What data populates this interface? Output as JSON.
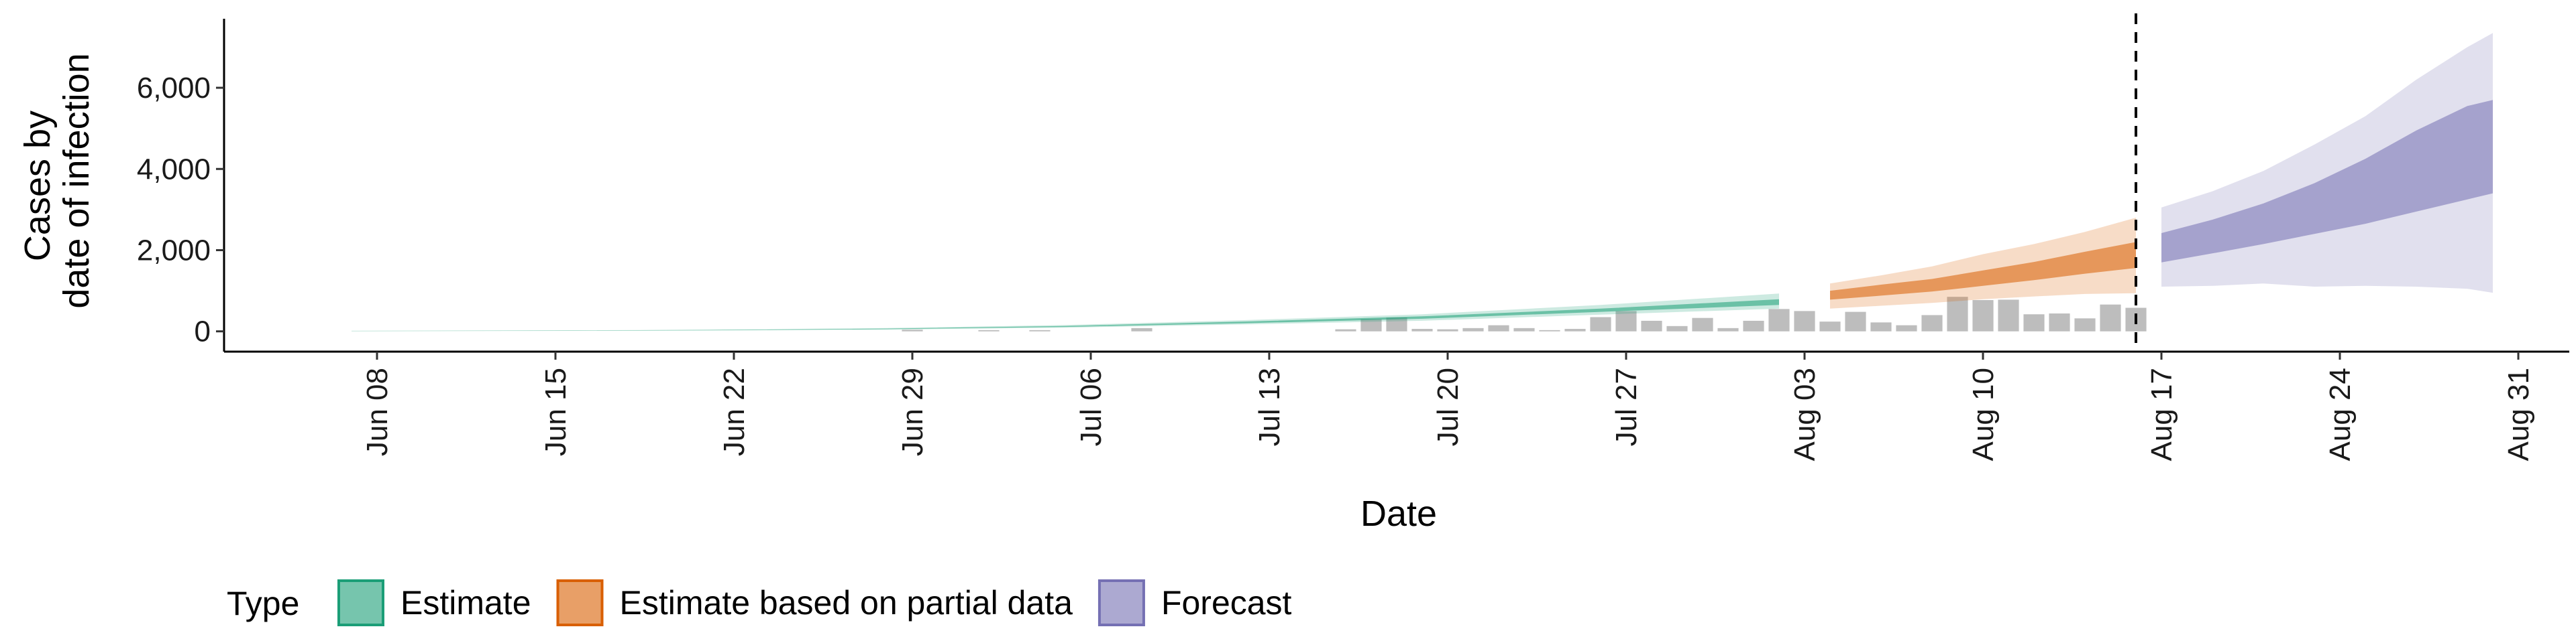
{
  "chart_data": {
    "type": "area",
    "title": "",
    "xlabel": "Date",
    "ylabel_lines": [
      "Cases by",
      "date of infection"
    ],
    "ylim": [
      -500,
      7700
    ],
    "yticks": [
      0,
      2000,
      4000,
      6000
    ],
    "ytick_labels": [
      "0",
      "2,000",
      "4,000",
      "6,000"
    ],
    "xticks": [
      {
        "date": "2020-06-08",
        "label": "Jun 08"
      },
      {
        "date": "2020-06-15",
        "label": "Jun 15"
      },
      {
        "date": "2020-06-22",
        "label": "Jun 22"
      },
      {
        "date": "2020-06-29",
        "label": "Jun 29"
      },
      {
        "date": "2020-07-06",
        "label": "Jul 06"
      },
      {
        "date": "2020-07-13",
        "label": "Jul 13"
      },
      {
        "date": "2020-07-20",
        "label": "Jul 20"
      },
      {
        "date": "2020-07-27",
        "label": "Jul 27"
      },
      {
        "date": "2020-08-03",
        "label": "Aug 03"
      },
      {
        "date": "2020-08-10",
        "label": "Aug 10"
      },
      {
        "date": "2020-08-17",
        "label": "Aug 17"
      },
      {
        "date": "2020-08-24",
        "label": "Aug 24"
      },
      {
        "date": "2020-08-31",
        "label": "Aug 31"
      }
    ],
    "xlim": [
      "2020-06-02",
      "2020-09-02"
    ],
    "vline_date": "2020-08-16",
    "observed_cases": {
      "dates": [
        "2020-06-29",
        "2020-07-02",
        "2020-07-04",
        "2020-07-08",
        "2020-07-16",
        "2020-07-17",
        "2020-07-18",
        "2020-07-19",
        "2020-07-20",
        "2020-07-21",
        "2020-07-22",
        "2020-07-23",
        "2020-07-24",
        "2020-07-25",
        "2020-07-26",
        "2020-07-27",
        "2020-07-28",
        "2020-07-29",
        "2020-07-30",
        "2020-07-31",
        "2020-08-01",
        "2020-08-02",
        "2020-08-03",
        "2020-08-04",
        "2020-08-05",
        "2020-08-06",
        "2020-08-07",
        "2020-08-08",
        "2020-08-09",
        "2020-08-10",
        "2020-08-11",
        "2020-08-12",
        "2020-08-13",
        "2020-08-14",
        "2020-08-15",
        "2020-08-16"
      ],
      "values": [
        40,
        30,
        30,
        80,
        50,
        300,
        340,
        60,
        50,
        80,
        150,
        80,
        30,
        60,
        350,
        500,
        260,
        130,
        330,
        80,
        260,
        550,
        500,
        240,
        480,
        220,
        150,
        400,
        850,
        770,
        780,
        420,
        440,
        320,
        660,
        580
      ]
    },
    "series": [
      {
        "name": "Estimate",
        "color": "#1b9e77",
        "dates": [
          "2020-06-07",
          "2020-06-14",
          "2020-06-21",
          "2020-06-28",
          "2020-07-05",
          "2020-07-12",
          "2020-07-19",
          "2020-07-26",
          "2020-08-02"
        ],
        "median": [
          10,
          15,
          30,
          60,
          120,
          220,
          340,
          520,
          720
        ],
        "inner": [
          [
            8,
            12,
            26,
            53,
            108,
            200,
            310,
            480,
            650
          ],
          [
            12,
            18,
            34,
            67,
            132,
            240,
            370,
            560,
            790
          ]
        ],
        "outer": [
          [
            5,
            9,
            20,
            42,
            90,
            170,
            260,
            410,
            560
          ],
          [
            15,
            22,
            40,
            80,
            155,
            275,
            420,
            650,
            930
          ]
        ]
      },
      {
        "name": "Estimate based on partial data",
        "color": "#d95f02",
        "dates": [
          "2020-08-04",
          "2020-08-06",
          "2020-08-08",
          "2020-08-10",
          "2020-08-12",
          "2020-08-14",
          "2020-08-16"
        ],
        "median": [
          900,
          1020,
          1140,
          1300,
          1480,
          1680,
          1880
        ],
        "inner": [
          [
            780,
            880,
            980,
            1120,
            1260,
            1420,
            1560
          ],
          [
            1000,
            1150,
            1290,
            1500,
            1710,
            1960,
            2200
          ]
        ],
        "outer": [
          [
            560,
            630,
            700,
            790,
            860,
            920,
            940
          ],
          [
            1180,
            1380,
            1600,
            1900,
            2150,
            2450,
            2800
          ]
        ]
      },
      {
        "name": "Forecast",
        "color": "#7570b3",
        "dates": [
          "2020-08-17",
          "2020-08-19",
          "2020-08-21",
          "2020-08-23",
          "2020-08-25",
          "2020-08-27",
          "2020-08-29",
          "2020-08-30"
        ],
        "median": [
          2050,
          2300,
          2650,
          3050,
          3550,
          4100,
          4750,
          5100
        ],
        "inner": [
          [
            1700,
            1920,
            2150,
            2400,
            2650,
            2950,
            3250,
            3400
          ],
          [
            2420,
            2750,
            3150,
            3650,
            4250,
            4950,
            5550,
            5700
          ]
        ],
        "outer": [
          [
            1100,
            1120,
            1180,
            1100,
            1120,
            1100,
            1050,
            950
          ],
          [
            3050,
            3450,
            3950,
            4600,
            5300,
            6200,
            7000,
            7350
          ]
        ]
      }
    ],
    "legend": {
      "title": "Type",
      "placement": "bottom",
      "entries": [
        {
          "label": "Estimate",
          "color": "#1b9e77"
        },
        {
          "label": "Estimate based on partial data",
          "color": "#d95f02"
        },
        {
          "label": "Forecast",
          "color": "#7570b3"
        }
      ]
    }
  }
}
